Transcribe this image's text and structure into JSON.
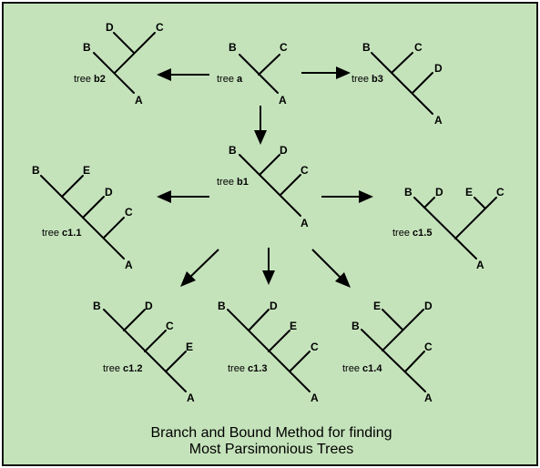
{
  "caption": {
    "line1": "Branch and Bound Method for finding",
    "line2": "Most Parsimonious Trees"
  },
  "tree_prefix": "tree",
  "trees": [
    {
      "id": "a",
      "leaves": [
        "B",
        "C",
        "A"
      ]
    },
    {
      "id": "b2",
      "leaves": [
        "D",
        "C",
        "B",
        "A"
      ]
    },
    {
      "id": "b3",
      "leaves": [
        "B",
        "C",
        "D",
        "A"
      ]
    },
    {
      "id": "b1",
      "leaves": [
        "B",
        "D",
        "C",
        "A"
      ]
    },
    {
      "id": "c1.1",
      "leaves": [
        "B",
        "E",
        "D",
        "C",
        "A"
      ]
    },
    {
      "id": "c1.5",
      "leaves": [
        "B",
        "D",
        "E",
        "C",
        "A"
      ]
    },
    {
      "id": "c1.2",
      "leaves": [
        "B",
        "D",
        "C",
        "E",
        "A"
      ]
    },
    {
      "id": "c1.3",
      "leaves": [
        "B",
        "D",
        "E",
        "C",
        "A"
      ]
    },
    {
      "id": "c1.4",
      "leaves": [
        "E",
        "D",
        "B",
        "C",
        "A"
      ]
    }
  ]
}
